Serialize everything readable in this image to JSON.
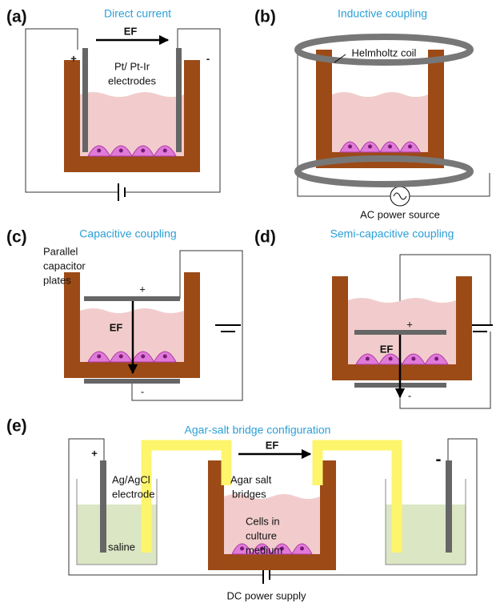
{
  "panels": [
    {
      "label": "(a)",
      "title": "Direct current",
      "annotations": [
        "EF",
        "+",
        "-",
        "Pt/ Pt-Ir",
        "electrodes"
      ]
    },
    {
      "label": "(b)",
      "title": "Inductive coupling",
      "annotations": [
        "Helmholtz coil",
        "AC power source"
      ]
    },
    {
      "label": "(c)",
      "title": "Capacitive coupling",
      "annotations": [
        "Parallel",
        "capacitor",
        "plates",
        "+",
        "EF",
        "-"
      ]
    },
    {
      "label": "(d)",
      "title": "Semi-capacitive coupling",
      "annotations": [
        "+",
        "EF",
        "-"
      ]
    },
    {
      "label": "(e)",
      "title": "Agar-salt bridge configuration",
      "annotations": [
        "EF",
        "+",
        "Ag/AgCl",
        "electrode",
        "saline",
        "Agar salt",
        "bridges",
        "Cells in",
        "culture",
        "medium",
        "-",
        "DC power supply"
      ]
    }
  ]
}
